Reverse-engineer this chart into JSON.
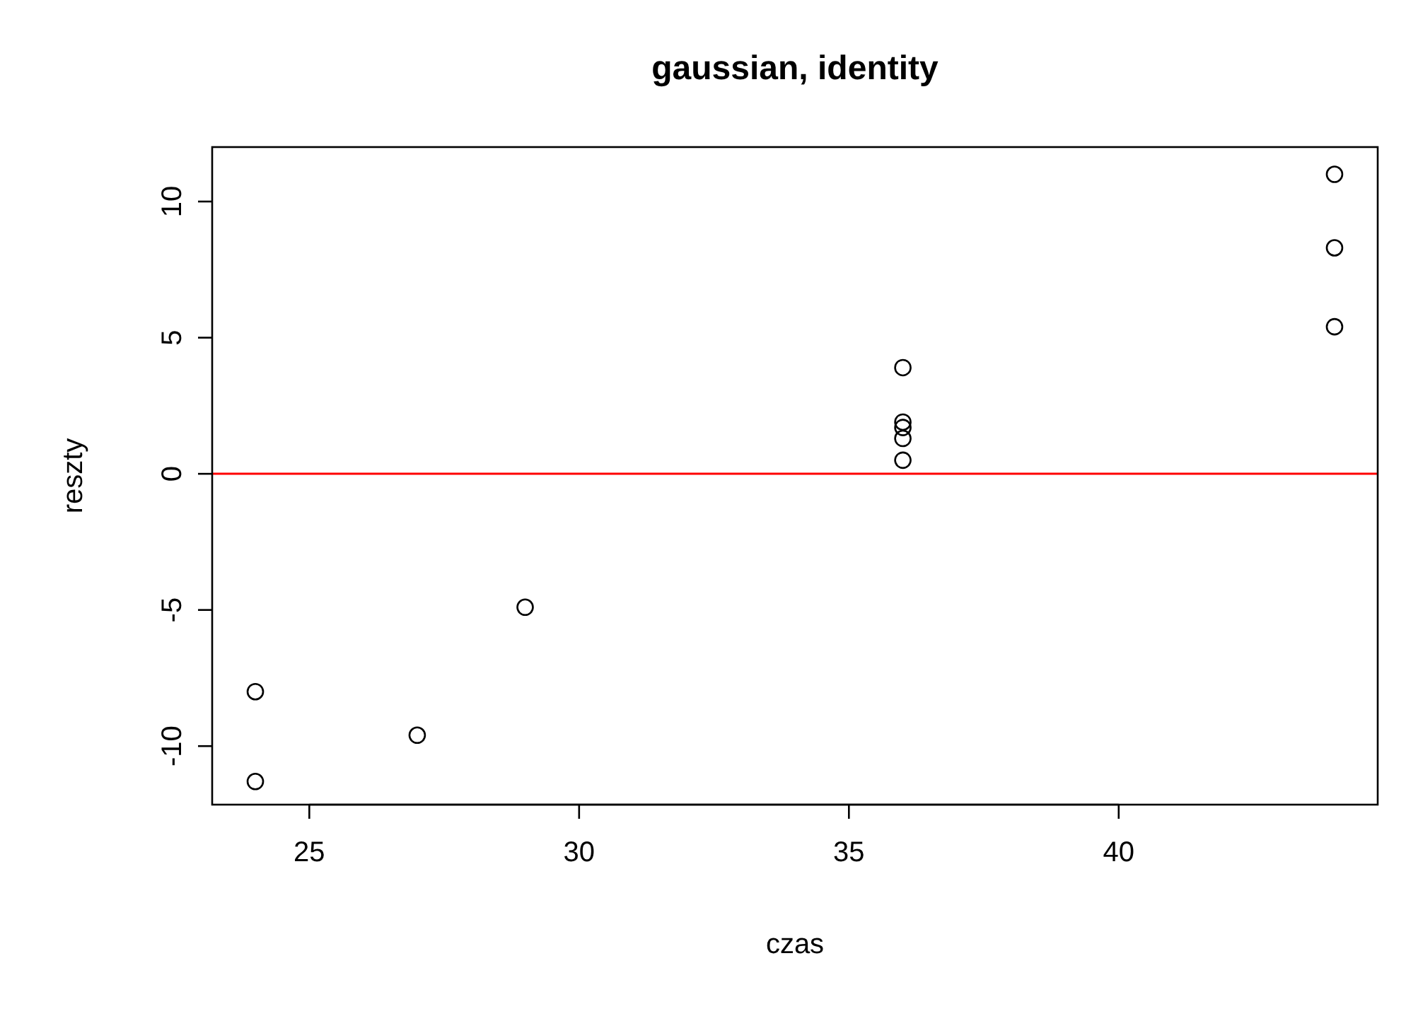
{
  "chart_data": {
    "type": "scatter",
    "title": "gaussian, identity",
    "xlabel": "czas",
    "ylabel": "reszty",
    "x": [
      24,
      24,
      27,
      29,
      36,
      36,
      36,
      36,
      36,
      44,
      44,
      44
    ],
    "values": [
      -8.0,
      -11.3,
      -9.6,
      -4.9,
      3.9,
      1.9,
      1.7,
      1.3,
      0.5,
      11.0,
      8.3,
      5.4
    ],
    "color": "#000000",
    "marker": "circle",
    "xlim": [
      23.2,
      44.8
    ],
    "ylim": [
      -12.15,
      12.0
    ],
    "xticks": [
      25,
      30,
      35,
      40
    ],
    "yticks": [
      -10,
      -5,
      0,
      5,
      10
    ],
    "ref_lines": [
      {
        "axis": "y",
        "value": 0,
        "color": "#ff0000"
      }
    ]
  }
}
